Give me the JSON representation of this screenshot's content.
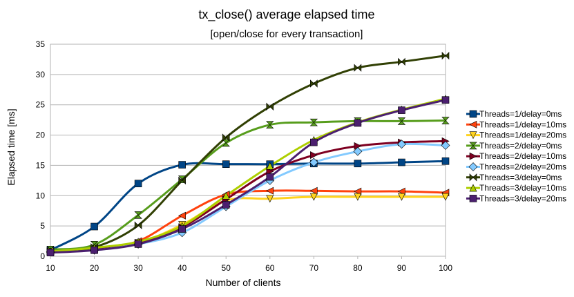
{
  "chart_data": {
    "type": "line",
    "title": "tx_close() average elapsed time",
    "subtitle": "[open/close for every transaction]",
    "xlabel": "Number of clients",
    "ylabel": "Elapsed time [ms]",
    "x": [
      10,
      20,
      30,
      40,
      50,
      60,
      70,
      80,
      90,
      100
    ],
    "xlim": [
      10,
      100
    ],
    "ylim": [
      0,
      35
    ],
    "yticks": [
      0,
      5,
      10,
      15,
      20,
      25,
      30,
      35
    ],
    "grid": "horizontal",
    "legend_position": "right",
    "series": [
      {
        "name": "Threads=1/delay=0ms",
        "color": "#004586",
        "marker": "square",
        "values": [
          1.0,
          4.9,
          12.0,
          15.1,
          15.2,
          15.2,
          15.3,
          15.3,
          15.5,
          15.7
        ]
      },
      {
        "name": "Threads=1/delay=10ms",
        "color": "#ff420e",
        "marker": "triangle-left",
        "values": [
          0.8,
          1.2,
          2.5,
          6.7,
          10.2,
          10.8,
          10.8,
          10.7,
          10.7,
          10.5
        ]
      },
      {
        "name": "Threads=1/delay=20ms",
        "color": "#ffd320",
        "marker": "triangle-down",
        "values": [
          0.8,
          1.2,
          2.2,
          5.2,
          9.2,
          9.5,
          9.8,
          9.8,
          9.8,
          9.8
        ]
      },
      {
        "name": "Threads=2/delay=0ms",
        "color": "#579d1c",
        "marker": "hourglass",
        "values": [
          1.1,
          1.9,
          6.8,
          12.7,
          18.7,
          21.7,
          22.1,
          22.3,
          22.3,
          22.4
        ]
      },
      {
        "name": "Threads=2/delay=10ms",
        "color": "#7e0021",
        "marker": "triangle-right",
        "values": [
          0.8,
          1.1,
          2.2,
          4.8,
          9.4,
          14.0,
          16.7,
          18.2,
          18.8,
          19.0
        ]
      },
      {
        "name": "Threads=2/delay=20ms",
        "color": "#83caff",
        "marker": "diamond",
        "values": [
          0.7,
          1.0,
          2.0,
          3.9,
          8.2,
          12.5,
          15.5,
          17.3,
          18.5,
          18.3
        ]
      },
      {
        "name": "Threads=3/delay=0ms",
        "color": "#314004",
        "marker": "bowtie",
        "values": [
          0.8,
          1.5,
          5.1,
          12.5,
          19.6,
          24.7,
          28.5,
          31.1,
          32.1,
          33.1
        ]
      },
      {
        "name": "Threads=3/delay=10ms",
        "color": "#aecf00",
        "marker": "triangle-up",
        "values": [
          0.8,
          1.4,
          2.4,
          5.0,
          10.0,
          14.9,
          19.2,
          22.1,
          24.2,
          26.0
        ]
      },
      {
        "name": "Threads=3/delay=20ms",
        "color": "#4b1f6f",
        "marker": "square",
        "values": [
          0.6,
          1.0,
          2.0,
          4.5,
          8.5,
          13.1,
          18.8,
          22.0,
          24.1,
          25.8
        ]
      }
    ]
  }
}
